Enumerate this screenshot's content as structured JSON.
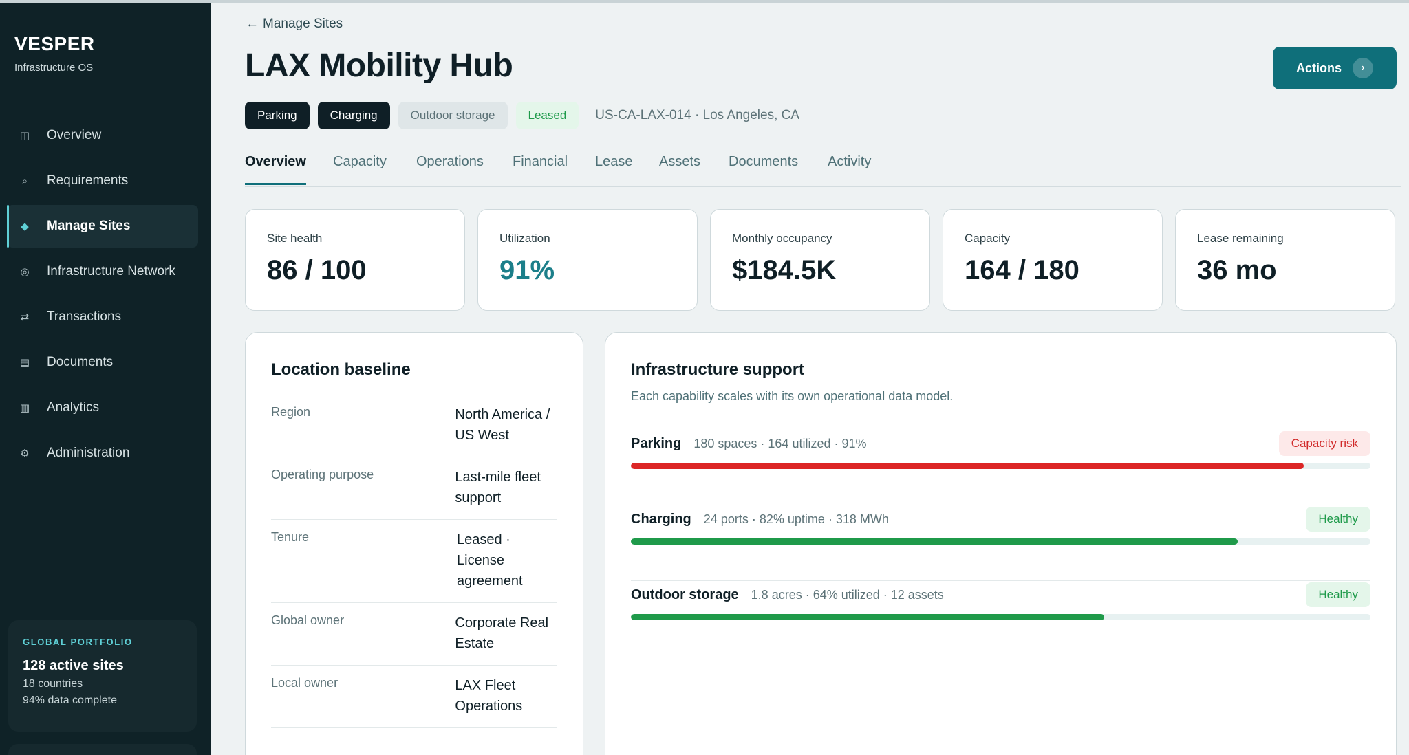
{
  "sidebar": {
    "brand": "VESPER",
    "subtitle": "Infrastructure OS",
    "items": [
      {
        "label": "Overview",
        "icon": "overview-icon",
        "glyph": "◫"
      },
      {
        "label": "Requirements",
        "icon": "search-icon",
        "glyph": "⌕"
      },
      {
        "label": "Manage Sites",
        "icon": "diamond-icon",
        "glyph": "◆"
      },
      {
        "label": "Infrastructure Network",
        "icon": "network-icon",
        "glyph": "◎"
      },
      {
        "label": "Transactions",
        "icon": "transfer-icon",
        "glyph": "⇄"
      },
      {
        "label": "Documents",
        "icon": "document-icon",
        "glyph": "▤"
      },
      {
        "label": "Analytics",
        "icon": "analytics-icon",
        "glyph": "▥"
      },
      {
        "label": "Administration",
        "icon": "gear-icon",
        "glyph": "⚙"
      }
    ],
    "active_item": "Manage Sites",
    "portfolio": {
      "label": "GLOBAL PORTFOLIO",
      "title": "128 active sites",
      "line1": "18 countries",
      "line2": "94% data complete"
    }
  },
  "header": {
    "back_label": "Manage Sites",
    "title": "LAX Mobility Hub",
    "actions_label": "Actions",
    "tags": [
      "Parking",
      "Charging",
      "Outdoor storage",
      "Leased"
    ],
    "meta": "US-CA-LAX-014 · Los Angeles, CA"
  },
  "tabs": [
    "Overview",
    "Capacity",
    "Operations",
    "Financial",
    "Lease",
    "Assets",
    "Documents",
    "Activity"
  ],
  "active_tab": "Overview",
  "kpis": [
    {
      "label": "Site health",
      "value": "86 / 100"
    },
    {
      "label": "Utilization",
      "value": "91%"
    },
    {
      "label": "Monthly occupancy",
      "value": "$184.5K"
    },
    {
      "label": "Capacity",
      "value": "164 / 180"
    },
    {
      "label": "Lease remaining",
      "value": "36 mo"
    }
  ],
  "location": {
    "title": "Location baseline",
    "rows": [
      {
        "key": "Region",
        "value": "North America / US West"
      },
      {
        "key": "Operating purpose",
        "value": "Last-mile fleet support"
      },
      {
        "key": "Tenure",
        "value": "Leased · License agreement"
      },
      {
        "key": "Global owner",
        "value": "Corporate Real Estate"
      },
      {
        "key": "Local owner",
        "value": "LAX Fleet Operations"
      }
    ]
  },
  "infrastructure": {
    "title": "Infrastructure support",
    "subtitle": "Each capability scales with its own operational data model.",
    "capabilities": [
      {
        "name": "Parking",
        "meta": "180 spaces · 164 utilized · 91%",
        "status": "Capacity risk",
        "level": 0.91,
        "color": "#dc2626"
      },
      {
        "name": "Charging",
        "meta": "24 ports · 82% uptime · 318 MWh",
        "status": "Healthy",
        "level": 0.82,
        "color": "#1f9a4a"
      },
      {
        "name": "Outdoor storage",
        "meta": "1.8 acres · 64% utilized · 12 assets",
        "status": "Healthy",
        "level": 0.64,
        "color": "#1f9a4a"
      }
    ]
  },
  "colors": {
    "sidebar_bg": "#0f2227",
    "accent": "#0f6f7a",
    "accent_light": "#5fd0d6",
    "risk": "#dc2626",
    "healthy": "#1f9a4a"
  }
}
